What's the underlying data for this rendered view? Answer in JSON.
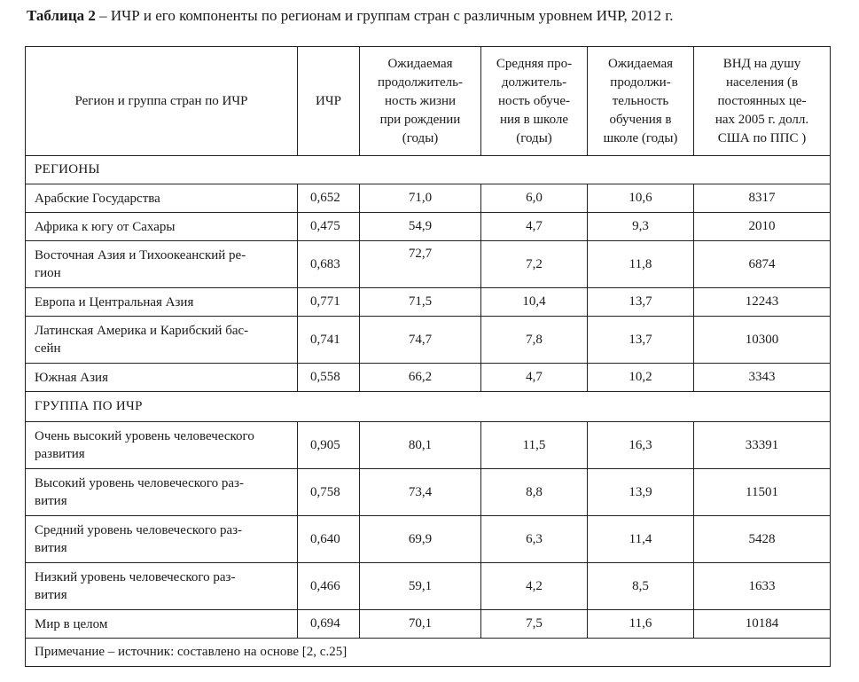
{
  "caption": {
    "label": "Таблица 2",
    "text": " – ИЧР и его компоненты по регионам и группам стран с различным уровнем ИЧР, 2012 г."
  },
  "headers": {
    "region": "Регион и группа стран по ИЧР",
    "hdi": "ИЧР",
    "life": [
      "Ожидаемая",
      "продолжитель-",
      "ность жизни",
      "при рождении",
      "(годы)"
    ],
    "mean": [
      "Средняя про-",
      "должитель-",
      "ность обуче-",
      "ния в школе",
      "(годы)"
    ],
    "expected": [
      "Ожидаемая",
      "продолжи-",
      "тельность",
      "обучения в",
      "школе (годы)"
    ],
    "gni": [
      "ВНД на душу",
      "населения (в",
      "постоянных це-",
      "нах 2005 г. долл.",
      "США по ППС )"
    ]
  },
  "sections": {
    "regions": "РЕГИОНЫ",
    "groups": "ГРУППА ПО ИЧР"
  },
  "rows": [
    {
      "name": [
        "Арабские Государства"
      ],
      "hdi": "0,652",
      "life": "71,0",
      "mean": "6,0",
      "expected": "10,6",
      "gni": "8317"
    },
    {
      "name": [
        "Африка к югу от Сахары"
      ],
      "hdi": "0,475",
      "life": "54,9",
      "mean": "4,7",
      "expected": "9,3",
      "gni": "2010"
    },
    {
      "name": [
        "Восточная Азия и Тихоокеанский ре-",
        "гион"
      ],
      "hdi": "0,683",
      "life": "72,7",
      "mean": "7,2",
      "expected": "11,8",
      "gni": "6874"
    },
    {
      "name": [
        "Европа и Центральная Азия"
      ],
      "hdi": "0,771",
      "life": "71,5",
      "mean": "10,4",
      "expected": "13,7",
      "gni": "12243"
    },
    {
      "name": [
        "Латинская Америка и Карибский бас-",
        "сейн"
      ],
      "hdi": "0,741",
      "life": "74,7",
      "mean": "7,8",
      "expected": "13,7",
      "gni": "10300"
    },
    {
      "name": [
        "Южная Азия"
      ],
      "hdi": "0,558",
      "life": "66,2",
      "mean": "4,7",
      "expected": "10,2",
      "gni": "3343"
    },
    {
      "name": [
        "Очень высокий уровень человеческого",
        "развития"
      ],
      "hdi": "0,905",
      "life": "80,1",
      "mean": "11,5",
      "expected": "16,3",
      "gni": "33391"
    },
    {
      "name": [
        "Высокий уровень человеческого раз-",
        "вития"
      ],
      "hdi": "0,758",
      "life": "73,4",
      "mean": "8,8",
      "expected": "13,9",
      "gni": "11501"
    },
    {
      "name": [
        "Средний уровень человеческого раз-",
        "вития"
      ],
      "hdi": "0,640",
      "life": "69,9",
      "mean": "6,3",
      "expected": "11,4",
      "gni": "5428"
    },
    {
      "name": [
        "Низкий уровень человеческого раз-",
        "вития"
      ],
      "hdi": "0,466",
      "life": "59,1",
      "mean": "4,2",
      "expected": "8,5",
      "gni": "1633"
    },
    {
      "name": [
        "Мир в целом"
      ],
      "hdi": "0,694",
      "life": "70,1",
      "mean": "7,5",
      "expected": "11,6",
      "gni": "10184"
    }
  ],
  "note": "Примечание – источник: составлено на основе [2, с.25]"
}
